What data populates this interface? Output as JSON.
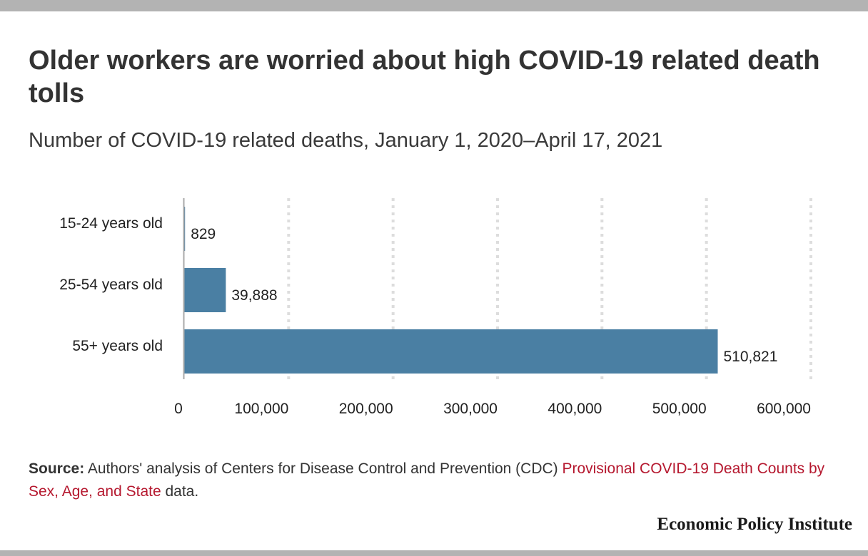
{
  "header": {
    "title": "Older workers are worried about high COVID-19 related death tolls",
    "subtitle": "Number of COVID-19 related deaths, January 1, 2020–April 17, 2021"
  },
  "chart_data": {
    "type": "bar",
    "orientation": "horizontal",
    "categories": [
      "15-24 years old",
      "25-54 years old",
      "55+ years old"
    ],
    "values": [
      829,
      39888,
      510821
    ],
    "value_labels": [
      "829",
      "39,888",
      "510,821"
    ],
    "xlim": [
      0,
      600000
    ],
    "x_ticks": [
      0,
      100000,
      200000,
      300000,
      400000,
      500000,
      600000
    ],
    "x_tick_labels": [
      "0",
      "100,000",
      "200,000",
      "300,000",
      "400,000",
      "500,000",
      "600,000"
    ],
    "grid": true,
    "grid_style": "dotted-vertical",
    "bar_color": "#4a7fa3"
  },
  "footer": {
    "source_label": "Source:",
    "source_text": " Authors' analysis of Centers for Disease Control and Prevention (CDC) ",
    "source_link": "Provisional COVID-19 Death Counts by Sex, Age, and State",
    "source_end": " data.",
    "brand": "Economic Policy Institute"
  },
  "colors": {
    "bar": "#4a7fa3",
    "link": "#b5172e",
    "bars_frame": "#b3b3b3"
  }
}
